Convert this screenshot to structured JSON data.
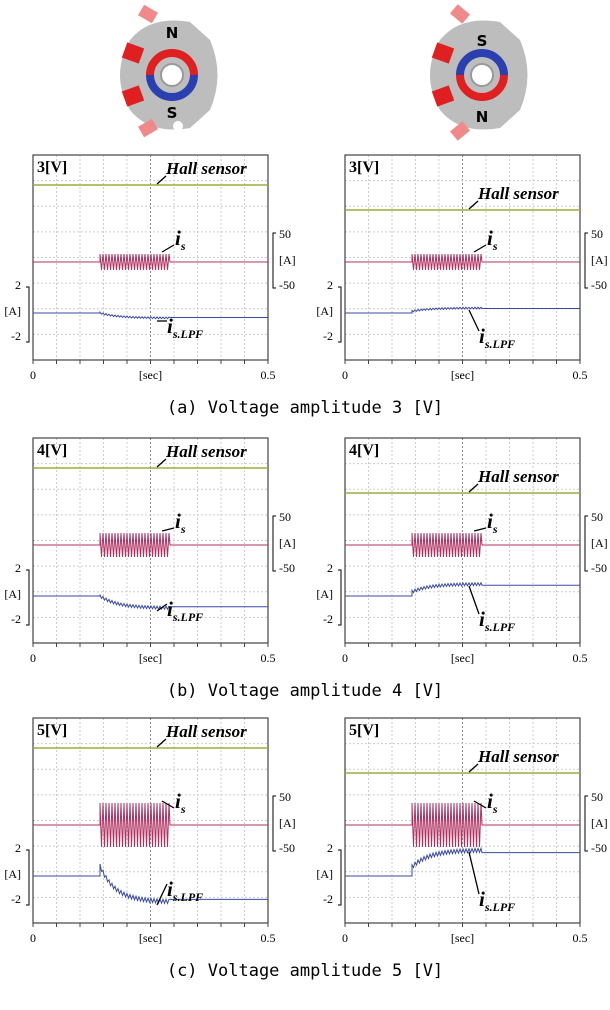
{
  "motors": [
    {
      "top_label": "N",
      "bottom_label": "S"
    },
    {
      "top_label": "S",
      "bottom_label": "N"
    }
  ],
  "rows": [
    {
      "caption": "(a) Voltage amplitude 3 [V]",
      "panels": [
        {
          "voltage_label": "3[V]",
          "hall_label": "Hall sensor",
          "current_label": "i",
          "current_subscript": "s",
          "filtered_label": "i",
          "filtered_subscript": "s.LPF",
          "right_axis": [
            50,
            "[A]",
            -50
          ],
          "left_axis": [
            2,
            "[A]",
            -2
          ],
          "x_axis": [
            0,
            "[sec]",
            0.5
          ]
        },
        {
          "voltage_label": "3[V]",
          "hall_label": "Hall sensor",
          "current_label": "i",
          "current_subscript": "s",
          "filtered_label": "i",
          "filtered_subscript": "s.LPF",
          "right_axis": [
            50,
            "[A]",
            -50
          ],
          "left_axis": [
            2,
            "[A]",
            -2
          ],
          "x_axis": [
            0,
            "[sec]",
            0.5
          ]
        }
      ]
    },
    {
      "caption": "(b) Voltage amplitude 4 [V]",
      "panels": [
        {
          "voltage_label": "4[V]",
          "hall_label": "Hall sensor",
          "current_label": "i",
          "current_subscript": "s",
          "filtered_label": "i",
          "filtered_subscript": "s.LPF",
          "right_axis": [
            50,
            "[A]",
            -50
          ],
          "left_axis": [
            2,
            "[A]",
            -2
          ],
          "x_axis": [
            0,
            "[sec]",
            0.5
          ]
        },
        {
          "voltage_label": "4[V]",
          "hall_label": "Hall sensor",
          "current_label": "i",
          "current_subscript": "s",
          "filtered_label": "i",
          "filtered_subscript": "s.LPF",
          "right_axis": [
            50,
            "[A]",
            -50
          ],
          "left_axis": [
            2,
            "[A]",
            -2
          ],
          "x_axis": [
            0,
            "[sec]",
            0.5
          ]
        }
      ]
    },
    {
      "caption": "(c) Voltage amplitude 5 [V]",
      "panels": [
        {
          "voltage_label": "5[V]",
          "hall_label": "Hall sensor",
          "current_label": "i",
          "current_subscript": "s",
          "filtered_label": "i",
          "filtered_subscript": "s.LPF",
          "right_axis": [
            50,
            "[A]",
            -50
          ],
          "left_axis": [
            2,
            "[A]",
            -2
          ],
          "x_axis": [
            0,
            "[sec]",
            0.5
          ]
        },
        {
          "voltage_label": "5[V]",
          "hall_label": "Hall sensor",
          "current_label": "i",
          "current_subscript": "s",
          "filtered_label": "i",
          "filtered_subscript": "s.LPF",
          "right_axis": [
            50,
            "[A]",
            -50
          ],
          "left_axis": [
            2,
            "[A]",
            -2
          ],
          "x_axis": [
            0,
            "[sec]",
            0.5
          ]
        }
      ]
    }
  ]
}
